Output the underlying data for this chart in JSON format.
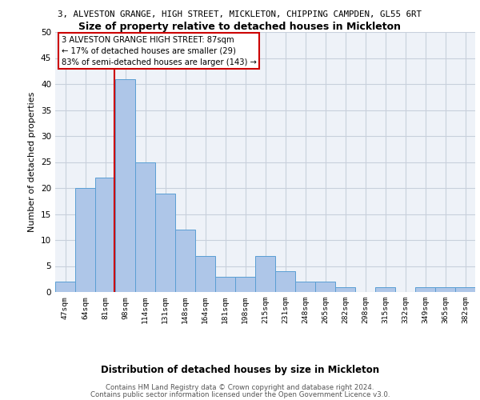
{
  "title_top": "3, ALVESTON GRANGE, HIGH STREET, MICKLETON, CHIPPING CAMPDEN, GL55 6RT",
  "title_sub": "Size of property relative to detached houses in Mickleton",
  "xlabel": "Distribution of detached houses by size in Mickleton",
  "ylabel": "Number of detached properties",
  "bin_labels": [
    "47sqm",
    "64sqm",
    "81sqm",
    "98sqm",
    "114sqm",
    "131sqm",
    "148sqm",
    "164sqm",
    "181sqm",
    "198sqm",
    "215sqm",
    "231sqm",
    "248sqm",
    "265sqm",
    "282sqm",
    "298sqm",
    "315sqm",
    "332sqm",
    "349sqm",
    "365sqm",
    "382sqm"
  ],
  "bar_heights": [
    2,
    20,
    22,
    41,
    25,
    19,
    12,
    7,
    3,
    3,
    7,
    4,
    2,
    2,
    1,
    0,
    1,
    0,
    1,
    1,
    1
  ],
  "bar_color": "#aec6e8",
  "bar_edge_color": "#5a9fd4",
  "annotation_line1": "3 ALVESTON GRANGE HIGH STREET: 87sqm",
  "annotation_line2": "← 17% of detached houses are smaller (29)",
  "annotation_line3": "83% of semi-detached houses are larger (143) →",
  "annotation_box_color": "#ffffff",
  "annotation_box_edge": "#cc0000",
  "subject_vline_color": "#cc0000",
  "subject_vline_x": 2.47,
  "ylim": [
    0,
    50
  ],
  "yticks": [
    0,
    5,
    10,
    15,
    20,
    25,
    30,
    35,
    40,
    45,
    50
  ],
  "grid_color": "#c8d0dc",
  "bg_color": "#eef2f8",
  "footer1": "Contains HM Land Registry data © Crown copyright and database right 2024.",
  "footer2": "Contains public sector information licensed under the Open Government Licence v3.0."
}
